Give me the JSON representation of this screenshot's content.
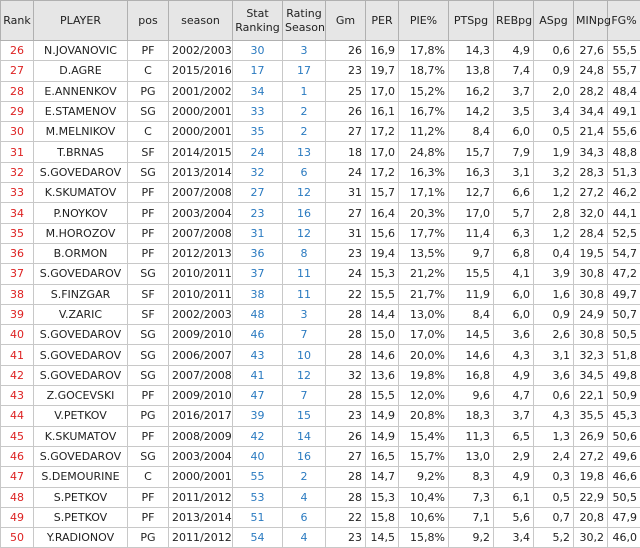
{
  "table": {
    "headers": [
      "Rank",
      "PLAYER",
      "pos",
      "season",
      "Stat Ranking",
      "Rating Season",
      "Gm",
      "PER",
      "PIE%",
      "PTSpg",
      "REBpg",
      "ASpg",
      "MINpg",
      "FG%"
    ],
    "rows": [
      [
        "26",
        "N.JOVANOVIC",
        "PF",
        "2002/2003",
        "30",
        "3",
        "26",
        "16,9",
        "17,8%",
        "14,3",
        "4,9",
        "0,6",
        "27,6",
        "55,5"
      ],
      [
        "27",
        "D.AGRE",
        "C",
        "2015/2016",
        "17",
        "17",
        "23",
        "19,7",
        "18,7%",
        "13,8",
        "7,4",
        "0,9",
        "24,8",
        "55,7"
      ],
      [
        "28",
        "E.ANNENKOV",
        "PG",
        "2001/2002",
        "34",
        "1",
        "25",
        "17,0",
        "15,2%",
        "16,2",
        "3,7",
        "2,0",
        "28,2",
        "48,4"
      ],
      [
        "29",
        "E.STAMENOV",
        "SG",
        "2000/2001",
        "33",
        "2",
        "26",
        "16,1",
        "16,7%",
        "14,2",
        "3,5",
        "3,4",
        "34,4",
        "49,1"
      ],
      [
        "30",
        "M.MELNIKOV",
        "C",
        "2000/2001",
        "35",
        "2",
        "27",
        "17,2",
        "11,2%",
        "8,4",
        "6,0",
        "0,5",
        "21,4",
        "55,6"
      ],
      [
        "31",
        "T.BRNAS",
        "SF",
        "2014/2015",
        "24",
        "13",
        "18",
        "17,0",
        "24,8%",
        "15,7",
        "7,9",
        "1,9",
        "34,3",
        "48,8"
      ],
      [
        "32",
        "S.GOVEDAROV",
        "SG",
        "2013/2014",
        "32",
        "6",
        "24",
        "17,2",
        "16,3%",
        "16,3",
        "3,1",
        "3,2",
        "28,3",
        "51,3"
      ],
      [
        "33",
        "K.SKUMATOV",
        "PF",
        "2007/2008",
        "27",
        "12",
        "31",
        "15,7",
        "17,1%",
        "12,7",
        "6,6",
        "1,2",
        "27,2",
        "46,2"
      ],
      [
        "34",
        "P.NOYKOV",
        "PF",
        "2003/2004",
        "23",
        "16",
        "27",
        "16,4",
        "20,3%",
        "17,0",
        "5,7",
        "2,8",
        "32,0",
        "44,1"
      ],
      [
        "35",
        "M.HOROZOV",
        "PF",
        "2007/2008",
        "31",
        "12",
        "31",
        "15,6",
        "17,7%",
        "11,4",
        "6,3",
        "1,2",
        "28,4",
        "52,5"
      ],
      [
        "36",
        "B.ORMON",
        "PF",
        "2012/2013",
        "36",
        "8",
        "23",
        "19,4",
        "13,5%",
        "9,7",
        "6,8",
        "0,4",
        "19,5",
        "54,7"
      ],
      [
        "37",
        "S.GOVEDAROV",
        "SG",
        "2010/2011",
        "37",
        "11",
        "24",
        "15,3",
        "21,2%",
        "15,5",
        "4,1",
        "3,9",
        "30,8",
        "47,2"
      ],
      [
        "38",
        "S.FINZGAR",
        "SF",
        "2010/2011",
        "38",
        "11",
        "22",
        "15,5",
        "21,7%",
        "11,9",
        "6,0",
        "1,6",
        "30,8",
        "49,7"
      ],
      [
        "39",
        "V.ZARIC",
        "SF",
        "2002/2003",
        "48",
        "3",
        "28",
        "14,4",
        "13,0%",
        "8,4",
        "6,0",
        "0,9",
        "24,9",
        "50,7"
      ],
      [
        "40",
        "S.GOVEDAROV",
        "SG",
        "2009/2010",
        "46",
        "7",
        "28",
        "15,0",
        "17,0%",
        "14,5",
        "3,6",
        "2,6",
        "30,8",
        "50,5"
      ],
      [
        "41",
        "S.GOVEDAROV",
        "SG",
        "2006/2007",
        "43",
        "10",
        "28",
        "14,6",
        "20,0%",
        "14,6",
        "4,3",
        "3,1",
        "32,3",
        "51,8"
      ],
      [
        "42",
        "S.GOVEDAROV",
        "SG",
        "2007/2008",
        "41",
        "12",
        "32",
        "13,6",
        "19,8%",
        "16,8",
        "4,9",
        "3,6",
        "34,5",
        "49,8"
      ],
      [
        "43",
        "Z.GOCEVSKI",
        "PF",
        "2009/2010",
        "47",
        "7",
        "28",
        "15,5",
        "12,0%",
        "9,6",
        "4,7",
        "0,6",
        "22,1",
        "50,9"
      ],
      [
        "44",
        "V.PETKOV",
        "PG",
        "2016/2017",
        "39",
        "15",
        "23",
        "14,9",
        "20,8%",
        "18,3",
        "3,7",
        "4,3",
        "35,5",
        "45,3"
      ],
      [
        "45",
        "K.SKUMATOV",
        "PF",
        "2008/2009",
        "42",
        "14",
        "26",
        "14,9",
        "15,4%",
        "11,3",
        "6,5",
        "1,3",
        "26,9",
        "50,6"
      ],
      [
        "46",
        "S.GOVEDAROV",
        "SG",
        "2003/2004",
        "40",
        "16",
        "27",
        "16,5",
        "15,7%",
        "13,0",
        "2,9",
        "2,4",
        "27,2",
        "49,6"
      ],
      [
        "47",
        "S.DEMOURINE",
        "C",
        "2000/2001",
        "55",
        "2",
        "28",
        "14,7",
        "9,2%",
        "8,3",
        "4,9",
        "0,3",
        "19,8",
        "46,6"
      ],
      [
        "48",
        "S.PETKOV",
        "PF",
        "2011/2012",
        "53",
        "4",
        "28",
        "15,3",
        "10,4%",
        "7,3",
        "6,1",
        "0,5",
        "22,9",
        "50,5"
      ],
      [
        "49",
        "S.PETKOV",
        "PF",
        "2013/2014",
        "51",
        "6",
        "22",
        "15,8",
        "10,6%",
        "7,1",
        "5,6",
        "0,7",
        "20,8",
        "47,9"
      ],
      [
        "50",
        "Y.RADIONOV",
        "PG",
        "2011/2012",
        "54",
        "4",
        "23",
        "14,5",
        "15,8%",
        "9,2",
        "3,4",
        "5,2",
        "30,2",
        "46,0"
      ]
    ]
  }
}
